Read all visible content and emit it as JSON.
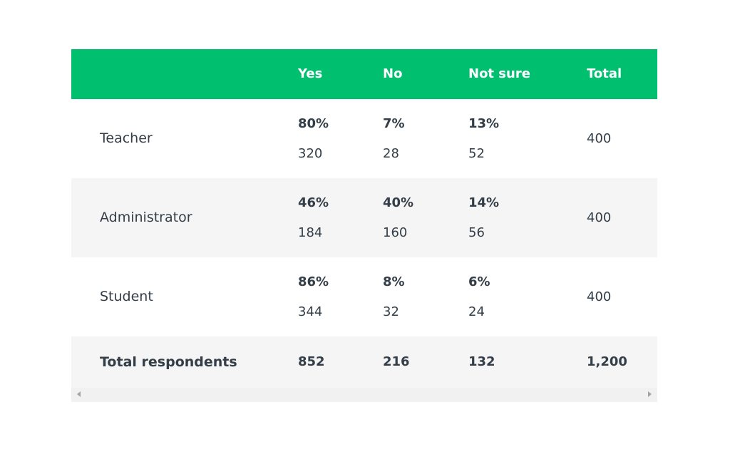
{
  "table": {
    "header": {
      "blank": "",
      "yes": "Yes",
      "no": "No",
      "not_sure": "Not sure",
      "total": "Total"
    },
    "rows": [
      {
        "label": "Teacher",
        "yes": {
          "pct": "80%",
          "count": "320"
        },
        "no": {
          "pct": "7%",
          "count": "28"
        },
        "not_sure": {
          "pct": "13%",
          "count": "52"
        },
        "total": "400"
      },
      {
        "label": "Administrator",
        "yes": {
          "pct": "46%",
          "count": "184"
        },
        "no": {
          "pct": "40%",
          "count": "160"
        },
        "not_sure": {
          "pct": "14%",
          "count": "56"
        },
        "total": "400"
      },
      {
        "label": "Student",
        "yes": {
          "pct": "86%",
          "count": "344"
        },
        "no": {
          "pct": "8%",
          "count": "32"
        },
        "not_sure": {
          "pct": "6%",
          "count": "24"
        },
        "total": "400"
      }
    ],
    "totals": {
      "label": "Total respondents",
      "yes": "852",
      "no": "216",
      "not_sure": "132",
      "total": "1,200"
    }
  },
  "colors": {
    "header_bg": "#00bf6f",
    "header_text": "#ffffff",
    "alt_row_bg": "#f5f5f5",
    "text": "#333e48"
  },
  "icons": {
    "scroll_left": "scroll-left-arrow-icon",
    "scroll_right": "scroll-right-arrow-icon"
  }
}
